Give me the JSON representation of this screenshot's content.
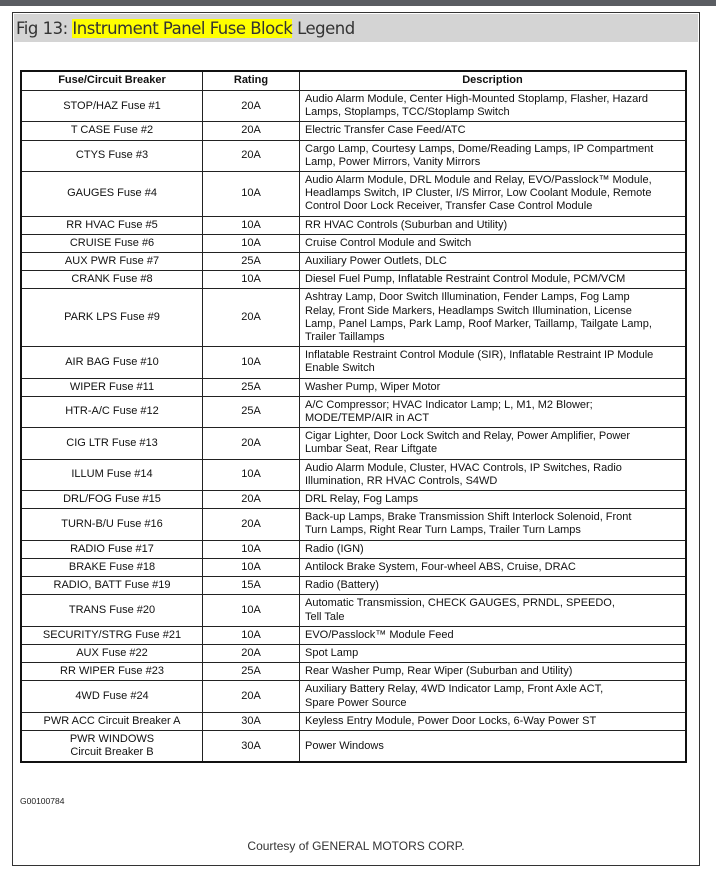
{
  "title": {
    "prefix": "Fig 13: ",
    "highlight": "Instrument Panel Fuse Block",
    "suffix": " Legend",
    "highlight_color": "#ffff00"
  },
  "table": {
    "headers": [
      "Fuse/Circuit Breaker",
      "Rating",
      "Description"
    ],
    "rows": [
      [
        "STOP/HAZ Fuse #1",
        "20A",
        "Audio Alarm Module, Center High-Mounted Stoplamp, Flasher, Hazard\nLamps, Stoplamps, TCC/Stoplamp Switch"
      ],
      [
        "T CASE Fuse #2",
        "20A",
        "Electric Transfer Case Feed/ATC"
      ],
      [
        "CTYS Fuse #3",
        "20A",
        "Cargo Lamp, Courtesy Lamps, Dome/Reading Lamps, IP Compartment\nLamp, Power Mirrors, Vanity Mirrors"
      ],
      [
        "GAUGES Fuse #4",
        "10A",
        "Audio Alarm Module, DRL Module and Relay, EVO/Passlock™ Module,\nHeadlamps Switch, IP Cluster, I/S Mirror, Low Coolant Module, Remote\nControl Door Lock Receiver, Transfer Case Control Module"
      ],
      [
        "RR HVAC Fuse #5",
        "10A",
        "RR HVAC Controls (Suburban and Utility)"
      ],
      [
        "CRUISE Fuse #6",
        "10A",
        "Cruise Control Module and Switch"
      ],
      [
        "AUX PWR Fuse #7",
        "25A",
        "Auxiliary Power Outlets, DLC"
      ],
      [
        "CRANK Fuse #8",
        "10A",
        "Diesel Fuel Pump, Inflatable Restraint Control Module, PCM/VCM"
      ],
      [
        "PARK LPS Fuse #9",
        "20A",
        "Ashtray Lamp, Door Switch Illumination, Fender Lamps, Fog Lamp\nRelay, Front Side Markers, Headlamps Switch Illumination, License\nLamp, Panel Lamps, Park Lamp, Roof Marker, Taillamp, Tailgate Lamp,\nTrailer Taillamps"
      ],
      [
        "AIR BAG Fuse #10",
        "10A",
        "Inflatable Restraint Control Module (SIR), Inflatable Restraint IP Module\nEnable Switch"
      ],
      [
        "WIPER Fuse #11",
        "25A",
        "Washer Pump, Wiper Motor"
      ],
      [
        "HTR-A/C Fuse #12",
        "25A",
        "A/C Compressor; HVAC Indicator Lamp; L, M1, M2 Blower;\nMODE/TEMP/AIR in ACT"
      ],
      [
        "CIG LTR Fuse #13",
        "20A",
        "Cigar Lighter, Door Lock Switch and Relay, Power Amplifier, Power\nLumbar Seat, Rear Liftgate"
      ],
      [
        "ILLUM Fuse #14",
        "10A",
        "Audio Alarm Module, Cluster, HVAC Controls, IP Switches, Radio\nIllumination, RR HVAC Controls, S4WD"
      ],
      [
        "DRL/FOG Fuse #15",
        "20A",
        "DRL Relay, Fog Lamps"
      ],
      [
        "TURN-B/U Fuse #16",
        "20A",
        "Back-up Lamps, Brake Transmission Shift Interlock Solenoid, Front\nTurn Lamps, Right Rear Turn Lamps, Trailer Turn Lamps"
      ],
      [
        "RADIO Fuse #17",
        "10A",
        "Radio (IGN)"
      ],
      [
        "BRAKE Fuse #18",
        "10A",
        "Antilock Brake System, Four-wheel ABS, Cruise, DRAC"
      ],
      [
        "RADIO, BATT Fuse #19",
        "15A",
        "Radio (Battery)"
      ],
      [
        "TRANS Fuse #20",
        "10A",
        "Automatic Transmission, CHECK GAUGES, PRNDL, SPEEDO,\nTell Tale"
      ],
      [
        "SECURITY/STRG Fuse #21",
        "10A",
        "EVO/Passlock™ Module Feed"
      ],
      [
        "AUX Fuse #22",
        "20A",
        "Spot Lamp"
      ],
      [
        "RR WIPER Fuse #23",
        "25A",
        "Rear Washer Pump, Rear Wiper (Suburban and Utility)"
      ],
      [
        "4WD Fuse #24",
        "20A",
        "Auxiliary Battery Relay, 4WD Indicator Lamp, Front Axle ACT,\nSpare Power Source"
      ],
      [
        "PWR ACC Circuit Breaker A",
        "30A",
        "Keyless Entry Module, Power Door Locks, 6-Way Power ST"
      ],
      [
        "PWR WINDOWS\nCircuit Breaker B",
        "30A",
        "Power Windows"
      ]
    ]
  },
  "figure_code": "G00100784",
  "credit": "Courtesy of GENERAL MOTORS CORP."
}
